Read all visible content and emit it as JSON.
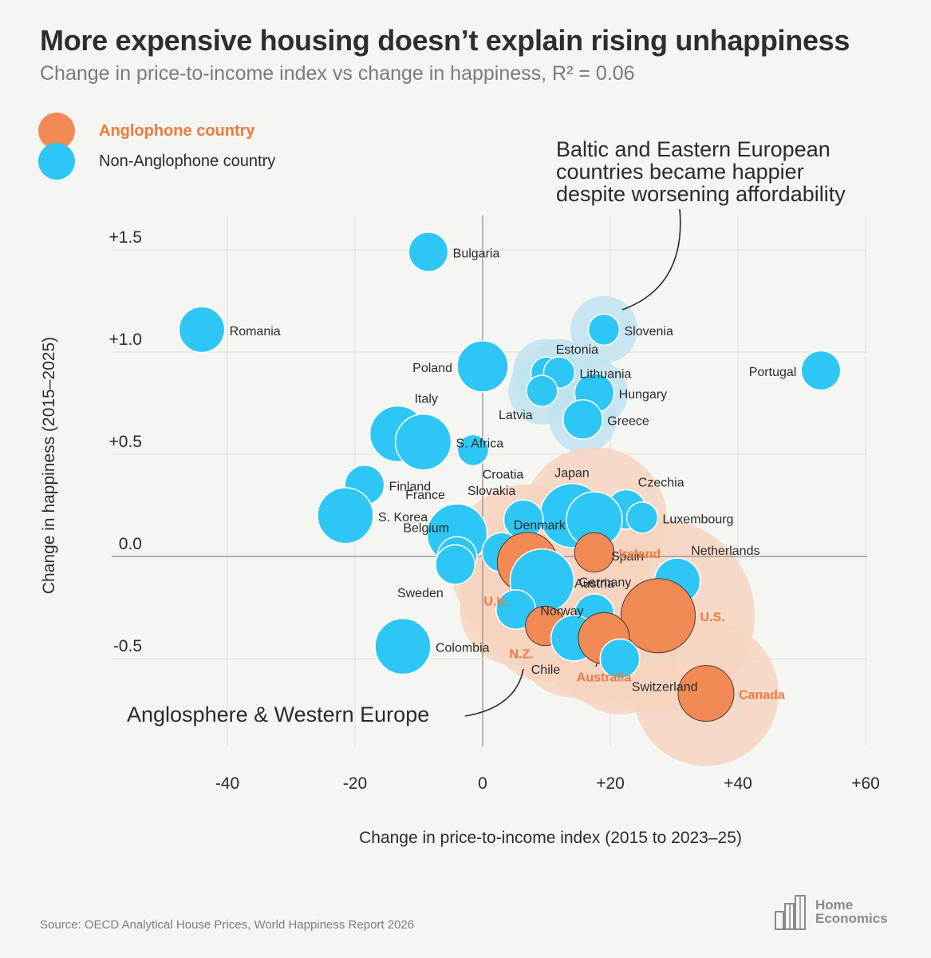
{
  "title": "More expensive housing doesn’t explain rising unhappiness",
  "subtitle": "Change in price-to-income index vs change in happiness, R² = 0.06",
  "legend": [
    {
      "label": "Anglophone country",
      "color": "#f28a55",
      "text_color": "#ef7a3d"
    },
    {
      "label": "Non-Anglophone country",
      "color": "#2ec6f5",
      "text_color": "#2b2b2b"
    }
  ],
  "colors": {
    "anglo": "#f28a55",
    "anglo_label": "#ef7a3d",
    "non_anglo": "#2ec6f5",
    "cluster_blue": "#bfe3f1",
    "cluster_orange": "#f7d3bf",
    "grid": "#dddddd",
    "zero_line": "#8a8a8a"
  },
  "source": "Source: OECD Analytical House Prices, World Happiness Report 2026",
  "brand": {
    "line1": "Home",
    "line2": "Economics"
  },
  "chart_data": {
    "type": "scatter",
    "xlabel": "Change in price-to-income index (2015 to 2023–25)",
    "ylabel": "Change in happiness (2015–2025)",
    "xlim": [
      -60,
      60
    ],
    "ylim": [
      -0.9,
      1.7
    ],
    "x_ticks": [
      {
        "value": -40,
        "label": "-40"
      },
      {
        "value": -20,
        "label": "-20"
      },
      {
        "value": 0,
        "label": "0"
      },
      {
        "value": 20,
        "label": "+20"
      },
      {
        "value": 40,
        "label": "+40"
      },
      {
        "value": 60,
        "label": "+60"
      }
    ],
    "y_ticks": [
      {
        "value": 1.5,
        "label": "+1.5"
      },
      {
        "value": 1.0,
        "label": "+1.0"
      },
      {
        "value": 0.5,
        "label": "+0.5"
      },
      {
        "value": 0.0,
        "label": "0.0"
      },
      {
        "value": -0.5,
        "label": "-0.5"
      }
    ],
    "points": [
      {
        "name": "Bulgaria",
        "x": -8.5,
        "y": 1.49,
        "size": 2,
        "anglo": false,
        "lp": "r"
      },
      {
        "name": "Romania",
        "x": -44,
        "y": 1.11,
        "size": 3,
        "anglo": false,
        "lp": "r"
      },
      {
        "name": "Slovenia",
        "x": 19,
        "y": 1.11,
        "size": 1,
        "anglo": false,
        "lp": "r"
      },
      {
        "name": "Poland",
        "x": 0,
        "y": 0.93,
        "size": 4,
        "anglo": false,
        "lp": "l"
      },
      {
        "name": "Estonia",
        "x": 10,
        "y": 0.9,
        "size": 1,
        "anglo": false,
        "lp": "tr"
      },
      {
        "name": "Lithuania",
        "x": 12,
        "y": 0.9,
        "size": 1,
        "anglo": false,
        "lp": "r"
      },
      {
        "name": "Portugal",
        "x": 53,
        "y": 0.91,
        "size": 2,
        "anglo": false,
        "lp": "l"
      },
      {
        "name": "Latvia",
        "x": 9.3,
        "y": 0.81,
        "size": 1,
        "anglo": false,
        "lp": "bl"
      },
      {
        "name": "Hungary",
        "x": 17.5,
        "y": 0.8,
        "size": 2,
        "anglo": false,
        "lp": "r"
      },
      {
        "name": "Greece",
        "x": 15.7,
        "y": 0.67,
        "size": 2,
        "anglo": false,
        "lp": "r"
      },
      {
        "name": "Italy",
        "x": -13.3,
        "y": 0.6,
        "size": 5,
        "anglo": false,
        "lp": "tr"
      },
      {
        "name": "S. Africa",
        "x": -9.3,
        "y": 0.56,
        "size": 5,
        "anglo": false,
        "lp": "r"
      },
      {
        "name": "Croatia",
        "x": -1.5,
        "y": 0.52,
        "size": 1,
        "anglo": false,
        "lp": "br"
      },
      {
        "name": "Finland",
        "x": -18.5,
        "y": 0.35,
        "size": 2,
        "anglo": false,
        "lp": "r"
      },
      {
        "name": "S. Korea",
        "x": -21.5,
        "y": 0.2,
        "size": 5,
        "anglo": false,
        "lp": "r"
      },
      {
        "name": "Japan",
        "x": 14,
        "y": 0.2,
        "size": 7,
        "anglo": false,
        "lp": "t"
      },
      {
        "name": "Slovakia",
        "x": 6.4,
        "y": 0.18,
        "size": 2,
        "anglo": false,
        "lp": "tl"
      },
      {
        "name": "Czechia",
        "x": 22.5,
        "y": 0.23,
        "size": 2,
        "anglo": false,
        "lp": "tr"
      },
      {
        "name": "Luxembourg",
        "x": 25,
        "y": 0.19,
        "size": 1,
        "anglo": false,
        "lp": "r"
      },
      {
        "name": "France",
        "x": -4,
        "y": 0.11,
        "size": 6,
        "anglo": false,
        "lp": "tl"
      },
      {
        "name": "Spain",
        "x": 17.5,
        "y": 0.18,
        "size": 5,
        "anglo": false,
        "lp": "br"
      },
      {
        "name": "Denmark",
        "x": 3,
        "y": 0.02,
        "size": 2,
        "anglo": false,
        "lp": "tr"
      },
      {
        "name": "Belgium",
        "x": -4,
        "y": 0.0,
        "size": 2,
        "anglo": false,
        "lp": "tl"
      },
      {
        "name": "Ireland",
        "x": 17.5,
        "y": 0.02,
        "size": 2,
        "anglo": true,
        "lp": "r"
      },
      {
        "name": "Sweden",
        "x": -4.3,
        "y": -0.04,
        "size": 2,
        "anglo": false,
        "lp": "bl"
      },
      {
        "name": "U.K.",
        "x": 7,
        "y": -0.03,
        "size": 6,
        "anglo": true,
        "lp": "bl"
      },
      {
        "name": "Germany",
        "x": 9.3,
        "y": -0.12,
        "size": 7,
        "anglo": false,
        "lp": "r"
      },
      {
        "name": "Netherlands",
        "x": 30.5,
        "y": -0.12,
        "size": 3,
        "anglo": false,
        "lp": "tr"
      },
      {
        "name": "Norway",
        "x": 5.2,
        "y": -0.26,
        "size": 2,
        "anglo": false,
        "lp": "r"
      },
      {
        "name": "Austria",
        "x": 17.5,
        "y": -0.28,
        "size": 2,
        "anglo": false,
        "lp": "t"
      },
      {
        "name": "U.S.",
        "x": 27.5,
        "y": -0.29,
        "size": 10,
        "anglo": true,
        "lp": "r"
      },
      {
        "name": "N.Z.",
        "x": 9.8,
        "y": -0.34,
        "size": 2,
        "anglo": true,
        "lp": "bl"
      },
      {
        "name": "Chile",
        "x": 14.3,
        "y": -0.4,
        "size": 3,
        "anglo": false,
        "lp": "bl"
      },
      {
        "name": "Australia",
        "x": 19,
        "y": -0.4,
        "size": 4,
        "anglo": true,
        "lp": "b"
      },
      {
        "name": "Switzerland",
        "x": 21.5,
        "y": -0.5,
        "size": 2,
        "anglo": false,
        "lp": "br"
      },
      {
        "name": "Colombia",
        "x": -12.5,
        "y": -0.44,
        "size": 5,
        "anglo": false,
        "lp": "r"
      },
      {
        "name": "Canada",
        "x": 35,
        "y": -0.67,
        "size": 5,
        "anglo": true,
        "lp": "r"
      }
    ],
    "clusters": [
      {
        "name": "baltic-eastern-europe",
        "color": "blue",
        "members": [
          "Slovenia",
          "Estonia",
          "Lithuania",
          "Latvia",
          "Hungary",
          "Greece"
        ]
      },
      {
        "name": "anglosphere-western-europe",
        "color": "orange",
        "members": [
          "U.K.",
          "Germany",
          "Norway",
          "Austria",
          "U.S.",
          "N.Z.",
          "Chile",
          "Australia",
          "Switzerland",
          "Canada",
          "Ireland",
          "Spain"
        ]
      }
    ],
    "annotations": [
      {
        "id": "baltic",
        "lines": [
          "Baltic and Eastern European",
          "countries became happier",
          "despite worsening affordability"
        ]
      },
      {
        "id": "anglosphere",
        "lines": [
          "Anglosphere & Western Europe"
        ]
      }
    ]
  }
}
